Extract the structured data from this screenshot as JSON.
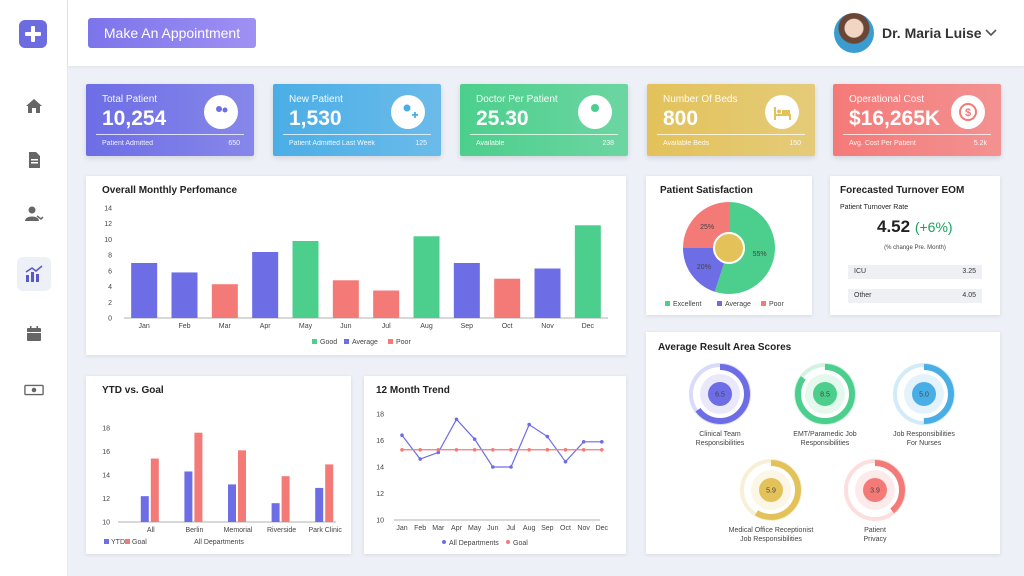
{
  "header": {
    "appointment_button": "Make An Appointment",
    "user_name": "Dr. Maria Luise"
  },
  "sidebar": {
    "items": [
      "home",
      "documents",
      "patients",
      "analytics",
      "calendar",
      "billing"
    ],
    "active": "analytics"
  },
  "stats": [
    {
      "label": "Total Patient",
      "value": "10,254",
      "sub_label": "Patient Admitted",
      "sub_value": "650",
      "color": "#6d6de6",
      "icon": "patients-icon"
    },
    {
      "label": "New Patient",
      "value": "1,530",
      "sub_label": "Patient Admitted Last Week",
      "sub_value": "125",
      "color": "#4aaee6",
      "icon": "add-patient-icon"
    },
    {
      "label": "Doctor Per Patient",
      "value": "25.30",
      "sub_label": "Available",
      "sub_value": "238",
      "color": "#4ccf8c",
      "icon": "doctor-icon"
    },
    {
      "label": "Number Of Beds",
      "value": "800",
      "sub_label": "Available Beds",
      "sub_value": "150",
      "color": "#e3c25a",
      "icon": "bed-icon"
    },
    {
      "label": "Operational Cost",
      "value": "$16,265K",
      "sub_label": "Avg. Cost Per Patient",
      "sub_value": "5.2k",
      "color": "#f47a78",
      "icon": "cost-icon"
    }
  ],
  "colors": {
    "good": "#4ccf8c",
    "average": "#6d6de6",
    "poor": "#f47a78",
    "ytd": "#6d6de6",
    "goal": "#f47a78"
  },
  "chart_data": [
    {
      "id": "monthly",
      "type": "bar",
      "title": "Overall Monthly Perfomance",
      "categories": [
        "Jan",
        "Feb",
        "Mar",
        "Apr",
        "May",
        "Jun",
        "Jul",
        "Aug",
        "Sep",
        "Oct",
        "Nov",
        "Dec"
      ],
      "values": [
        7,
        5.8,
        4.3,
        8.4,
        9.8,
        4.8,
        3.5,
        10.4,
        7,
        5,
        6.3,
        11.8
      ],
      "ratings": [
        "Average",
        "Average",
        "Poor",
        "Average",
        "Good",
        "Poor",
        "Poor",
        "Good",
        "Average",
        "Poor",
        "Average",
        "Good"
      ],
      "ylim": [
        0,
        14
      ],
      "yticks": [
        0,
        2,
        4,
        6,
        8,
        10,
        12,
        14
      ],
      "legend": [
        "Good",
        "Average",
        "Poor"
      ]
    },
    {
      "id": "satisfaction",
      "type": "pie",
      "title": "Patient Satisfaction",
      "slices": [
        {
          "label": "Excellent",
          "value": 55
        },
        {
          "label": "Average",
          "value": 20
        },
        {
          "label": "Poor",
          "value": 25
        }
      ],
      "legend": [
        "Excellent",
        "Average",
        "Poor"
      ]
    },
    {
      "id": "ytd",
      "type": "bar",
      "title": "YTD vs. Goal",
      "categories": [
        "All",
        "Berlin",
        "Memorial",
        "Riverside",
        "Park Clinic"
      ],
      "series": [
        {
          "name": "YTD",
          "values": [
            12.2,
            14.3,
            13.2,
            11.6,
            12.9
          ]
        },
        {
          "name": "Goal",
          "values": [
            15.4,
            17.6,
            16.1,
            13.9,
            14.9
          ]
        }
      ],
      "ylim": [
        10,
        18
      ],
      "yticks": [
        10,
        12,
        14,
        16,
        18
      ],
      "xlabel": "All Departments",
      "legend": [
        "YTD",
        "Goal"
      ]
    },
    {
      "id": "trend",
      "type": "line",
      "title": "12 Month Trend",
      "categories": [
        "Jan",
        "Feb",
        "Mar",
        "Apr",
        "May",
        "Jun",
        "Jul",
        "Aug",
        "Sep",
        "Oct",
        "Nov",
        "Dec"
      ],
      "series": [
        {
          "name": "All Departments",
          "values": [
            16.4,
            14.6,
            15.1,
            17.6,
            16.1,
            14,
            14,
            17.2,
            16.3,
            14.4,
            15.9,
            15.9
          ]
        },
        {
          "name": "Goal",
          "values": [
            15.3,
            15.3,
            15.3,
            15.3,
            15.3,
            15.3,
            15.3,
            15.3,
            15.3,
            15.3,
            15.3,
            15.3
          ]
        }
      ],
      "ylim": [
        10,
        18
      ],
      "yticks": [
        10,
        12,
        14,
        16,
        18
      ],
      "legend": [
        "All Departments",
        "Goal"
      ]
    }
  ],
  "turnover": {
    "title": "Forecasted Turnover EOM",
    "subtitle": "Patient Turnover Rate",
    "value": "4.52",
    "change": "(+6%)",
    "note": "(% change Pre. Month)",
    "rows": [
      {
        "label": "ICU",
        "value": "3.25"
      },
      {
        "label": "Other",
        "value": "4.05"
      }
    ]
  },
  "scores": {
    "title": "Average Result Area Scores",
    "items": [
      {
        "label1": "Clinical Team",
        "label2": "Responsibilities",
        "value": "6.5",
        "fraction": 0.65,
        "color": "#6d6de6"
      },
      {
        "label1": "EMT/Paramedic Job",
        "label2": "Responsibilities",
        "value": "8.5",
        "fraction": 0.85,
        "color": "#4ccf8c"
      },
      {
        "label1": "Job Responsibilities",
        "label2": "For Nurses",
        "value": "5.0",
        "fraction": 0.5,
        "color": "#4aaee6"
      },
      {
        "label1": "Medical Office Receptionist",
        "label2": "Job Responsibilities",
        "value": "5.9",
        "fraction": 0.59,
        "color": "#e3c25a"
      },
      {
        "label1": "Patient",
        "label2": "Privacy",
        "value": "3.9",
        "fraction": 0.39,
        "color": "#f47a78"
      }
    ]
  }
}
